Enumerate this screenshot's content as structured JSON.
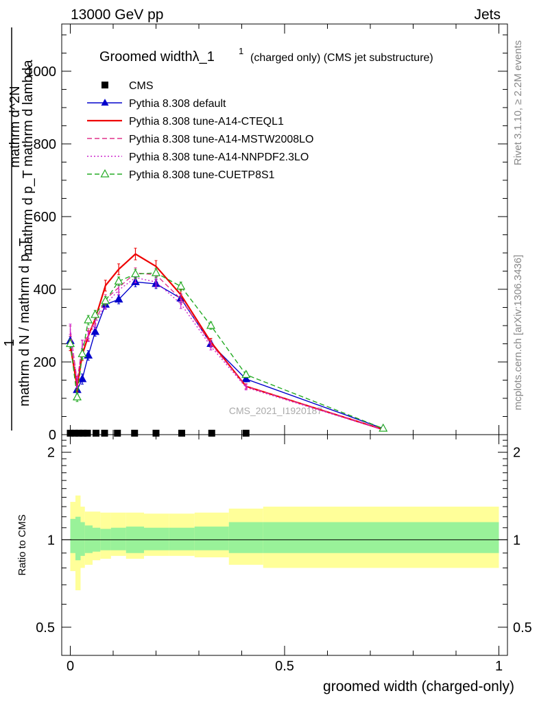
{
  "header": {
    "left": "13000 GeV pp",
    "right": "Jets"
  },
  "side": {
    "rivet": "Rivet 3.1.10, ≥ 2.2M events",
    "mcplots": "mcplots.cern.ch [arXiv:1306.3436]"
  },
  "chart_data": [
    {
      "type": "line",
      "title_main": "Groomed widthλ_1",
      "title_sup": "1",
      "title_rest": "(charged only) (CMS jet substructure)",
      "ylabel": "1 / mathrm d N / mathrm d p_T mathrm d^2N / mathrm d p_T mathrm d lambda",
      "watermark": "CMS_2021_I1920187",
      "xlim": [
        -0.02,
        1.02
      ],
      "ylim": [
        0,
        1130
      ],
      "yticks": [
        0,
        200,
        400,
        600,
        800,
        1000
      ],
      "ytick_labels": [
        "0",
        "200",
        "400",
        "600",
        "800",
        "1000"
      ],
      "legend_position": "top-left",
      "data": {
        "name": "CMS",
        "x": [
          0.0,
          0.01,
          0.02,
          0.03,
          0.04,
          0.06,
          0.08,
          0.11,
          0.15,
          0.2,
          0.26,
          0.33,
          0.41
        ],
        "y": [
          4,
          4,
          4,
          4,
          4,
          4,
          4,
          4,
          4,
          4,
          4,
          4,
          4
        ]
      },
      "series": [
        {
          "name": "Pythia 8.308 default",
          "color": "#0000cc",
          "style": "solid",
          "marker": "triangle-filled",
          "x": [
            0.0,
            0.016,
            0.028,
            0.042,
            0.058,
            0.082,
            0.113,
            0.152,
            0.2,
            0.258,
            0.328,
            0.41,
            0.73
          ],
          "y": [
            258,
            123,
            153,
            218,
            283,
            358,
            372,
            420,
            415,
            375,
            250,
            153,
            17
          ],
          "yerr": [
            12,
            12,
            14,
            13,
            12,
            12,
            12,
            13,
            13,
            12,
            10,
            8,
            3
          ]
        },
        {
          "name": "Pythia 8.308 tune-A14-CTEQL1",
          "color": "#ee0000",
          "style": "solid",
          "marker": "none",
          "x": [
            0.0,
            0.016,
            0.028,
            0.042,
            0.058,
            0.082,
            0.113,
            0.152,
            0.2,
            0.258,
            0.328,
            0.41,
            0.73
          ],
          "y": [
            245,
            132,
            220,
            272,
            318,
            410,
            455,
            497,
            463,
            385,
            255,
            133,
            14
          ],
          "yerr": [
            14,
            14,
            16,
            14,
            14,
            15,
            15,
            16,
            16,
            14,
            10,
            7,
            3
          ]
        },
        {
          "name": "Pythia 8.308 tune-A14-MSTW2008LO",
          "color": "#e0308a",
          "style": "dashed",
          "marker": "none",
          "x": [
            0.0,
            0.016,
            0.028,
            0.042,
            0.058,
            0.082,
            0.113,
            0.152,
            0.2,
            0.258,
            0.328,
            0.41,
            0.73
          ],
          "y": [
            285,
            148,
            245,
            278,
            312,
            372,
            405,
            445,
            440,
            373,
            250,
            133,
            14
          ],
          "yerr": [
            14,
            14,
            15,
            14,
            13,
            13,
            13,
            14,
            14,
            13,
            10,
            7,
            3
          ]
        },
        {
          "name": "Pythia 8.308 tune-A14-NNPDF2.3LO",
          "color": "#cc22cc",
          "style": "dotted",
          "marker": "none",
          "x": [
            0.0,
            0.016,
            0.028,
            0.042,
            0.058,
            0.082,
            0.113,
            0.152,
            0.2,
            0.258,
            0.328,
            0.41,
            0.73
          ],
          "y": [
            290,
            143,
            245,
            270,
            305,
            358,
            398,
            432,
            420,
            360,
            243,
            130,
            13
          ],
          "yerr": [
            14,
            14,
            15,
            14,
            13,
            13,
            13,
            14,
            14,
            13,
            10,
            7,
            3
          ]
        },
        {
          "name": "Pythia 8.308 tune-CUETP8S1",
          "color": "#22aa22",
          "style": "dashed",
          "marker": "triangle-open",
          "x": [
            0.0,
            0.016,
            0.028,
            0.042,
            0.058,
            0.082,
            0.113,
            0.152,
            0.2,
            0.258,
            0.328,
            0.41,
            0.73
          ],
          "y": [
            250,
            103,
            222,
            315,
            330,
            368,
            422,
            442,
            445,
            408,
            300,
            165,
            17
          ],
          "yerr": [
            12,
            12,
            14,
            13,
            12,
            12,
            12,
            13,
            13,
            12,
            10,
            8,
            3
          ]
        }
      ]
    },
    {
      "type": "area",
      "ylabel": "Ratio to CMS",
      "xlabel": "groomed width (charged-only)",
      "xlim": [
        -0.02,
        1.02
      ],
      "ylim": [
        0.4,
        2.3
      ],
      "yscale": "log",
      "yticks": [
        0.5,
        1,
        2
      ],
      "ytick_labels": [
        "0.5",
        "1",
        "2"
      ],
      "xticks": [
        0,
        0.5,
        1
      ],
      "xtick_labels": [
        "0",
        "0.5",
        "1"
      ],
      "reference_line": 1,
      "bands": {
        "bin_edges": [
          0.0,
          0.012,
          0.024,
          0.034,
          0.052,
          0.07,
          0.095,
          0.13,
          0.172,
          0.23,
          0.29,
          0.37,
          0.45,
          1.0
        ],
        "stat_lo": [
          0.9,
          0.85,
          0.88,
          0.9,
          0.91,
          0.92,
          0.92,
          0.9,
          0.92,
          0.92,
          0.92,
          0.9,
          0.9
        ],
        "stat_hi": [
          1.18,
          1.2,
          1.15,
          1.12,
          1.1,
          1.09,
          1.1,
          1.11,
          1.1,
          1.1,
          1.11,
          1.15,
          1.15
        ],
        "total_lo": [
          0.78,
          0.67,
          0.8,
          0.82,
          0.85,
          0.86,
          0.88,
          0.86,
          0.88,
          0.88,
          0.87,
          0.82,
          0.8
        ],
        "total_hi": [
          1.35,
          1.42,
          1.3,
          1.25,
          1.25,
          1.24,
          1.24,
          1.24,
          1.23,
          1.23,
          1.24,
          1.28,
          1.3
        ],
        "stat_color": "#99f299",
        "total_color": "#ffff99"
      }
    }
  ]
}
